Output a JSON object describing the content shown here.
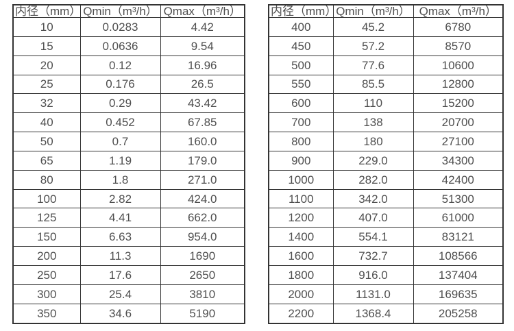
{
  "style": {
    "text_color": "#4f4f4f",
    "border_color": "#333333",
    "background_color": "#ffffff"
  },
  "tables": [
    {
      "headers": [
        "内径（mm）",
        "Qmin（m³/h）",
        "Qmax（m³/h）"
      ],
      "rows": [
        [
          "10",
          "0.0283",
          "4.42"
        ],
        [
          "15",
          "0.0636",
          "9.54"
        ],
        [
          "20",
          "0.12",
          "16.96"
        ],
        [
          "25",
          "0.176",
          "26.5"
        ],
        [
          "32",
          "0.29",
          "43.42"
        ],
        [
          "40",
          "0.452",
          "67.85"
        ],
        [
          "50",
          "0.7",
          "160.0"
        ],
        [
          "65",
          "1.19",
          "179.0"
        ],
        [
          "80",
          "1.8",
          "271.0"
        ],
        [
          "100",
          "2.82",
          "424.0"
        ],
        [
          "125",
          "4.41",
          "662.0"
        ],
        [
          "150",
          "6.63",
          "954.0"
        ],
        [
          "200",
          "11.3",
          "1690"
        ],
        [
          "250",
          "17.6",
          "2650"
        ],
        [
          "300",
          "25.4",
          "3810"
        ],
        [
          "350",
          "34.6",
          "5190"
        ]
      ]
    },
    {
      "headers": [
        "内径（mm）",
        "Qmin（m³/h）",
        "Qmax（m³/h）"
      ],
      "rows": [
        [
          "400",
          "45.2",
          "6780"
        ],
        [
          "450",
          "57.2",
          "8570"
        ],
        [
          "500",
          "77.6",
          "10600"
        ],
        [
          "550",
          "85.5",
          "12800"
        ],
        [
          "600",
          "110",
          "15200"
        ],
        [
          "700",
          "138",
          "20700"
        ],
        [
          "800",
          "180",
          "27100"
        ],
        [
          "900",
          "229.0",
          "34300"
        ],
        [
          "1000",
          "282.0",
          "42400"
        ],
        [
          "1100",
          "342.0",
          "51300"
        ],
        [
          "1200",
          "407.0",
          "61000"
        ],
        [
          "1400",
          "554.1",
          "83121"
        ],
        [
          "1600",
          "732.7",
          "108566"
        ],
        [
          "1800",
          "916.0",
          "137404"
        ],
        [
          "2000",
          "1131.0",
          "169635"
        ],
        [
          "2200",
          "1368.4",
          "205258"
        ]
      ]
    }
  ],
  "column_semantics": [
    "diameter",
    "qmin",
    "qmax"
  ]
}
